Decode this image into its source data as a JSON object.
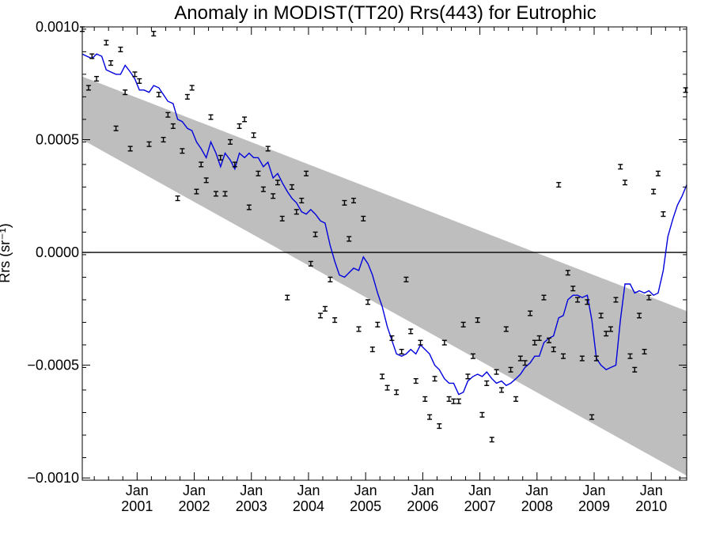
{
  "chart_data": {
    "type": "line",
    "title": "Anomaly in MODIST(TT20) Rrs(443) for Eutrophic",
    "ylabel": "Rrs (sr⁻¹)",
    "xlabel": "",
    "xlim": [
      2000.04,
      2010.62
    ],
    "ylim": [
      -0.00101,
      0.001
    ],
    "yticks": [
      0.001,
      0.0005,
      0.0,
      -0.0005,
      -0.001
    ],
    "ytick_labels": [
      "0.0010",
      "0.0005",
      "0.0000",
      "−0.0005",
      "−0.0010"
    ],
    "xticks": [
      {
        "x": 2001.0,
        "label": "Jan",
        "year": "2001"
      },
      {
        "x": 2002.0,
        "label": "Jan",
        "year": "2002"
      },
      {
        "x": 2003.0,
        "label": "Jan",
        "year": "2003"
      },
      {
        "x": 2004.0,
        "label": "Jan",
        "year": "2004"
      },
      {
        "x": 2005.0,
        "label": "Jan",
        "year": "2005"
      },
      {
        "x": 2006.0,
        "label": "Jan",
        "year": "2006"
      },
      {
        "x": 2007.0,
        "label": "Jan",
        "year": "2007"
      },
      {
        "x": 2008.0,
        "label": "Jan",
        "year": "2008"
      },
      {
        "x": 2009.0,
        "label": "Jan",
        "year": "2009"
      },
      {
        "x": 2010.0,
        "label": "Jan",
        "year": "2010"
      }
    ],
    "zero_line": 0.0,
    "band": {
      "color": "#bebebe",
      "upper": [
        [
          2000.04,
          0.00078
        ],
        [
          2010.62,
          -0.00026
        ]
      ],
      "lower": [
        [
          2000.04,
          0.0005
        ],
        [
          2010.62,
          -0.00099
        ]
      ]
    },
    "series": [
      {
        "kind": "line",
        "color": "#0000dd",
        "points": [
          [
            2000.04,
            0.00088
          ],
          [
            2000.12,
            0.00087
          ],
          [
            2000.21,
            0.00086
          ],
          [
            2000.29,
            0.00088
          ],
          [
            2000.38,
            0.00087
          ],
          [
            2000.46,
            0.00081
          ],
          [
            2000.54,
            0.0008
          ],
          [
            2000.63,
            0.00079
          ],
          [
            2000.71,
            0.00079
          ],
          [
            2000.79,
            0.00083
          ],
          [
            2000.88,
            0.0008
          ],
          [
            2000.96,
            0.00077
          ],
          [
            2001.04,
            0.00072
          ],
          [
            2001.12,
            0.00072
          ],
          [
            2001.21,
            0.00071
          ],
          [
            2001.29,
            0.00074
          ],
          [
            2001.38,
            0.00073
          ],
          [
            2001.46,
            0.0007
          ],
          [
            2001.54,
            0.00067
          ],
          [
            2001.63,
            0.00066
          ],
          [
            2001.71,
            0.00059
          ],
          [
            2001.79,
            0.00058
          ],
          [
            2001.88,
            0.00055
          ],
          [
            2001.96,
            0.00054
          ],
          [
            2002.04,
            0.00049
          ],
          [
            2002.12,
            0.00046
          ],
          [
            2002.21,
            0.00042
          ],
          [
            2002.29,
            0.00049
          ],
          [
            2002.38,
            0.00044
          ],
          [
            2002.46,
            0.00038
          ],
          [
            2002.54,
            0.00044
          ],
          [
            2002.63,
            0.00041
          ],
          [
            2002.71,
            0.00037
          ],
          [
            2002.79,
            0.00044
          ],
          [
            2002.88,
            0.00042
          ],
          [
            2002.96,
            0.00044
          ],
          [
            2003.04,
            0.00042
          ],
          [
            2003.12,
            0.00042
          ],
          [
            2003.21,
            0.00038
          ],
          [
            2003.29,
            0.0004
          ],
          [
            2003.38,
            0.00033
          ],
          [
            2003.46,
            0.00035
          ],
          [
            2003.54,
            0.00031
          ],
          [
            2003.63,
            0.00027
          ],
          [
            2003.71,
            0.00024
          ],
          [
            2003.79,
            0.00022
          ],
          [
            2003.88,
            0.00018
          ],
          [
            2003.96,
            0.00017
          ],
          [
            2004.04,
            0.00019
          ],
          [
            2004.12,
            0.00017
          ],
          [
            2004.21,
            0.00014
          ],
          [
            2004.29,
            0.00013
          ],
          [
            2004.38,
            3e-05
          ],
          [
            2004.46,
            -4e-05
          ],
          [
            2004.54,
            -0.0001
          ],
          [
            2004.63,
            -0.00011
          ],
          [
            2004.71,
            -9e-05
          ],
          [
            2004.79,
            -7e-05
          ],
          [
            2004.88,
            -8e-05
          ],
          [
            2004.96,
            -2e-05
          ],
          [
            2005.04,
            -5e-05
          ],
          [
            2005.12,
            -0.0001
          ],
          [
            2005.21,
            -0.00018
          ],
          [
            2005.29,
            -0.00024
          ],
          [
            2005.38,
            -0.00033
          ],
          [
            2005.46,
            -0.00039
          ],
          [
            2005.54,
            -0.00045
          ],
          [
            2005.63,
            -0.00046
          ],
          [
            2005.71,
            -0.00045
          ],
          [
            2005.79,
            -0.00043
          ],
          [
            2005.88,
            -0.00045
          ],
          [
            2005.96,
            -0.00041
          ],
          [
            2006.04,
            -0.00043
          ],
          [
            2006.12,
            -0.00045
          ],
          [
            2006.21,
            -0.0005
          ],
          [
            2006.29,
            -0.00052
          ],
          [
            2006.38,
            -0.00056
          ],
          [
            2006.46,
            -0.00058
          ],
          [
            2006.54,
            -0.00058
          ],
          [
            2006.63,
            -0.00063
          ],
          [
            2006.71,
            -0.00062
          ],
          [
            2006.79,
            -0.00057
          ],
          [
            2006.88,
            -0.00055
          ],
          [
            2006.96,
            -0.00054
          ],
          [
            2007.04,
            -0.00055
          ],
          [
            2007.12,
            -0.00053
          ],
          [
            2007.21,
            -0.00056
          ],
          [
            2007.29,
            -0.00058
          ],
          [
            2007.38,
            -0.00057
          ],
          [
            2007.46,
            -0.00059
          ],
          [
            2007.54,
            -0.00058
          ],
          [
            2007.63,
            -0.00056
          ],
          [
            2007.71,
            -0.00054
          ],
          [
            2007.79,
            -0.00051
          ],
          [
            2007.88,
            -0.00049
          ],
          [
            2007.96,
            -0.00046
          ],
          [
            2008.04,
            -0.00046
          ],
          [
            2008.12,
            -0.0004
          ],
          [
            2008.21,
            -0.00038
          ],
          [
            2008.29,
            -0.00037
          ],
          [
            2008.38,
            -0.00029
          ],
          [
            2008.46,
            -0.00028
          ],
          [
            2008.54,
            -0.00021
          ],
          [
            2008.63,
            -0.00019
          ],
          [
            2008.71,
            -0.00019
          ],
          [
            2008.79,
            -0.0002
          ],
          [
            2008.88,
            -0.00019
          ],
          [
            2008.96,
            -0.0003
          ],
          [
            2009.04,
            -0.00047
          ],
          [
            2009.12,
            -0.0005
          ],
          [
            2009.21,
            -0.00052
          ],
          [
            2009.29,
            -0.00051
          ],
          [
            2009.38,
            -0.0005
          ],
          [
            2009.46,
            -0.0003
          ],
          [
            2009.54,
            -0.00014
          ],
          [
            2009.63,
            -0.00014
          ],
          [
            2009.71,
            -0.00018
          ],
          [
            2009.79,
            -0.00017
          ],
          [
            2009.88,
            -0.00018
          ],
          [
            2009.96,
            -0.00017
          ],
          [
            2010.04,
            -0.00019
          ],
          [
            2010.12,
            -0.00018
          ],
          [
            2010.21,
            -8e-05
          ],
          [
            2010.29,
            7e-05
          ],
          [
            2010.38,
            0.00015
          ],
          [
            2010.46,
            0.00021
          ],
          [
            2010.54,
            0.00025
          ],
          [
            2010.62,
            0.0003
          ]
        ]
      },
      {
        "kind": "errorbars",
        "color": "#000000",
        "err": 1e-05,
        "points": [
          [
            2000.04,
            0.00099
          ],
          [
            2000.15,
            0.00073
          ],
          [
            2000.21,
            0.00087
          ],
          [
            2000.29,
            0.00077
          ],
          [
            2000.46,
            0.00093
          ],
          [
            2000.54,
            0.00084
          ],
          [
            2000.63,
            0.00055
          ],
          [
            2000.71,
            0.0009
          ],
          [
            2000.79,
            0.00071
          ],
          [
            2000.88,
            0.00046
          ],
          [
            2000.96,
            0.00079
          ],
          [
            2001.04,
            0.00076
          ],
          [
            2001.21,
            0.00048
          ],
          [
            2001.29,
            0.00097
          ],
          [
            2001.38,
            0.0007
          ],
          [
            2001.46,
            0.0005
          ],
          [
            2001.54,
            0.00061
          ],
          [
            2001.63,
            0.00056
          ],
          [
            2001.71,
            0.00024
          ],
          [
            2001.79,
            0.00045
          ],
          [
            2001.88,
            0.00069
          ],
          [
            2001.96,
            0.00073
          ],
          [
            2002.04,
            0.00027
          ],
          [
            2002.12,
            0.00039
          ],
          [
            2002.21,
            0.00032
          ],
          [
            2002.29,
            0.0006
          ],
          [
            2002.38,
            0.00026
          ],
          [
            2002.46,
            0.00042
          ],
          [
            2002.54,
            0.00026
          ],
          [
            2002.63,
            0.00049
          ],
          [
            2002.71,
            0.00039
          ],
          [
            2002.79,
            0.00056
          ],
          [
            2002.88,
            0.00059
          ],
          [
            2002.96,
            0.0002
          ],
          [
            2003.04,
            0.00052
          ],
          [
            2003.12,
            0.00035
          ],
          [
            2003.21,
            0.00028
          ],
          [
            2003.29,
            0.00046
          ],
          [
            2003.38,
            0.00025
          ],
          [
            2003.46,
            0.00031
          ],
          [
            2003.54,
            0.00015
          ],
          [
            2003.63,
            -0.0002
          ],
          [
            2003.71,
            0.00029
          ],
          [
            2003.79,
            0.00018
          ],
          [
            2003.88,
            0.00023
          ],
          [
            2003.96,
            0.00035
          ],
          [
            2004.04,
            -5e-05
          ],
          [
            2004.12,
            8e-05
          ],
          [
            2004.21,
            -0.00028
          ],
          [
            2004.29,
            -0.00025
          ],
          [
            2004.38,
            -0.00012
          ],
          [
            2004.46,
            -0.0003
          ],
          [
            2004.63,
            0.00022
          ],
          [
            2004.71,
            6e-05
          ],
          [
            2004.79,
            0.00023
          ],
          [
            2004.88,
            -0.00034
          ],
          [
            2004.96,
            0.00015
          ],
          [
            2005.04,
            -0.00022
          ],
          [
            2005.12,
            -0.00043
          ],
          [
            2005.21,
            -0.00032
          ],
          [
            2005.29,
            -0.00055
          ],
          [
            2005.38,
            -0.0006
          ],
          [
            2005.46,
            -0.00038
          ],
          [
            2005.54,
            -0.00062
          ],
          [
            2005.63,
            -0.00044
          ],
          [
            2005.71,
            -0.00012
          ],
          [
            2005.79,
            -0.00035
          ],
          [
            2005.88,
            -0.00057
          ],
          [
            2005.96,
            -0.0004
          ],
          [
            2006.04,
            -0.00065
          ],
          [
            2006.12,
            -0.00073
          ],
          [
            2006.21,
            -0.00056
          ],
          [
            2006.29,
            -0.00077
          ],
          [
            2006.38,
            -0.0004
          ],
          [
            2006.46,
            -0.00065
          ],
          [
            2006.54,
            -0.00066
          ],
          [
            2006.63,
            -0.00066
          ],
          [
            2006.71,
            -0.00032
          ],
          [
            2006.79,
            -0.00055
          ],
          [
            2006.88,
            -0.00046
          ],
          [
            2006.96,
            -0.0003
          ],
          [
            2007.04,
            -0.00072
          ],
          [
            2007.12,
            -0.00058
          ],
          [
            2007.21,
            -0.00083
          ],
          [
            2007.29,
            -0.00053
          ],
          [
            2007.38,
            -0.00061
          ],
          [
            2007.46,
            -0.00034
          ],
          [
            2007.54,
            -0.00052
          ],
          [
            2007.63,
            -0.00065
          ],
          [
            2007.71,
            -0.00047
          ],
          [
            2007.79,
            -0.00049
          ],
          [
            2007.88,
            -0.00027
          ],
          [
            2007.96,
            -0.0004
          ],
          [
            2008.04,
            -0.00038
          ],
          [
            2008.12,
            -0.0002
          ],
          [
            2008.21,
            -0.00039
          ],
          [
            2008.29,
            -0.00043
          ],
          [
            2008.38,
            0.0003
          ],
          [
            2008.46,
            -0.00046
          ],
          [
            2008.54,
            -9e-05
          ],
          [
            2008.63,
            -0.00016
          ],
          [
            2008.71,
            -0.00021
          ],
          [
            2008.79,
            -0.00047
          ],
          [
            2008.88,
            -0.00022
          ],
          [
            2008.96,
            -0.00073
          ],
          [
            2009.04,
            -0.00047
          ],
          [
            2009.12,
            -0.00028
          ],
          [
            2009.21,
            -0.00036
          ],
          [
            2009.29,
            -0.00034
          ],
          [
            2009.38,
            -0.00021
          ],
          [
            2009.46,
            0.00038
          ],
          [
            2009.54,
            0.00031
          ],
          [
            2009.63,
            -0.00046
          ],
          [
            2009.71,
            -0.00052
          ],
          [
            2009.79,
            -0.00028
          ],
          [
            2009.88,
            -0.00044
          ],
          [
            2009.96,
            -0.0002
          ],
          [
            2010.04,
            0.00027
          ],
          [
            2010.12,
            0.00035
          ],
          [
            2010.21,
            0.00017
          ],
          [
            2010.6,
            0.00072
          ]
        ]
      }
    ]
  }
}
